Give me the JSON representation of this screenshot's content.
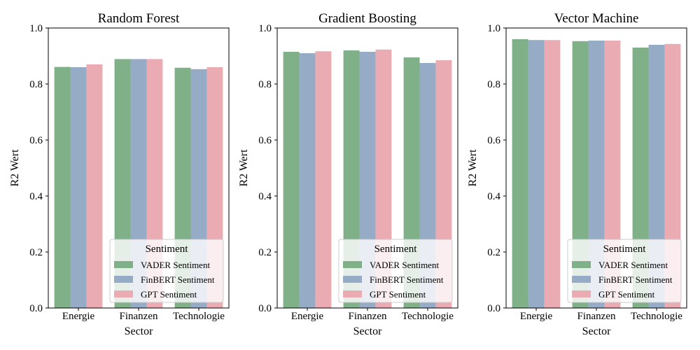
{
  "chart_data": [
    {
      "type": "bar",
      "title": "Random Forest",
      "xlabel": "Sector",
      "ylabel": "R2 Wert",
      "ylim": [
        0,
        1
      ],
      "yticks": [
        "0.0",
        "0.2",
        "0.4",
        "0.6",
        "0.8",
        "1.0"
      ],
      "categories": [
        "Energie",
        "Finanzen",
        "Technologie"
      ],
      "grid": false,
      "legend": {
        "title": "Sentiment",
        "placement": "lower-right"
      },
      "series": [
        {
          "name": "VADER Sentiment",
          "color": "#7fb087",
          "values": [
            0.861,
            0.889,
            0.858
          ]
        },
        {
          "name": "FinBERT Sentiment",
          "color": "#95abc6",
          "values": [
            0.86,
            0.889,
            0.853
          ]
        },
        {
          "name": "GPT Sentiment",
          "color": "#eaabb3",
          "values": [
            0.87,
            0.889,
            0.86
          ]
        }
      ]
    },
    {
      "type": "bar",
      "title": "Gradient Boosting",
      "xlabel": "Sector",
      "ylabel": "R2 Wert",
      "ylim": [
        0,
        1
      ],
      "yticks": [
        "0.0",
        "0.2",
        "0.4",
        "0.6",
        "0.8",
        "1.0"
      ],
      "categories": [
        "Energie",
        "Finanzen",
        "Technologie"
      ],
      "grid": false,
      "legend": {
        "title": "Sentiment",
        "placement": "lower-right"
      },
      "series": [
        {
          "name": "VADER Sentiment",
          "color": "#7fb087",
          "values": [
            0.915,
            0.92,
            0.895
          ]
        },
        {
          "name": "FinBERT Sentiment",
          "color": "#95abc6",
          "values": [
            0.91,
            0.915,
            0.875
          ]
        },
        {
          "name": "GPT Sentiment",
          "color": "#eaabb3",
          "values": [
            0.917,
            0.923,
            0.885
          ]
        }
      ]
    },
    {
      "type": "bar",
      "title": "Vector Machine",
      "xlabel": "Sector",
      "ylabel": "R2 Wert",
      "ylim": [
        0,
        1
      ],
      "yticks": [
        "0.0",
        "0.2",
        "0.4",
        "0.6",
        "0.8",
        "1.0"
      ],
      "categories": [
        "Energie",
        "Finanzen",
        "Technologie"
      ],
      "grid": false,
      "legend": {
        "title": "Sentiment",
        "placement": "lower-right"
      },
      "series": [
        {
          "name": "VADER Sentiment",
          "color": "#7fb087",
          "values": [
            0.96,
            0.953,
            0.93
          ]
        },
        {
          "name": "FinBERT Sentiment",
          "color": "#95abc6",
          "values": [
            0.957,
            0.955,
            0.94
          ]
        },
        {
          "name": "GPT Sentiment",
          "color": "#eaabb3",
          "values": [
            0.957,
            0.955,
            0.943
          ]
        }
      ]
    }
  ]
}
